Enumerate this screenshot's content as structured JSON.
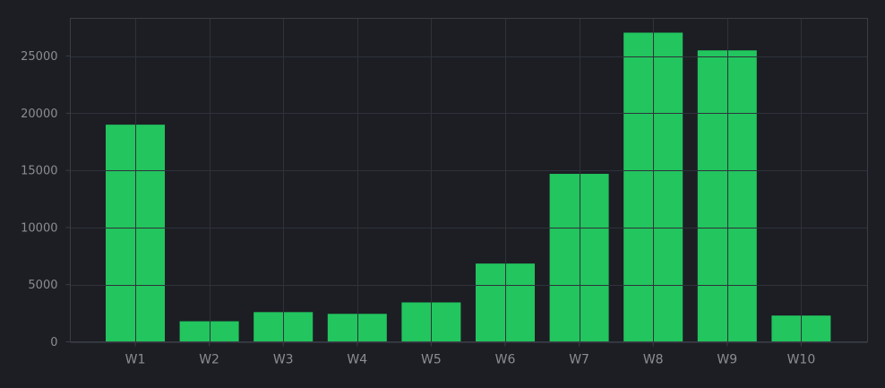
{
  "chart_data": {
    "type": "bar",
    "categories": [
      "W1",
      "W2",
      "W3",
      "W4",
      "W5",
      "W6",
      "W7",
      "W8",
      "W9",
      "W10"
    ],
    "values": [
      19000,
      1800,
      2600,
      2450,
      3450,
      6850,
      14700,
      27050,
      25500,
      2300
    ],
    "ylim": [
      0,
      28300
    ],
    "yticks": [
      0,
      5000,
      10000,
      15000,
      20000,
      25000
    ],
    "title": "",
    "xlabel": "",
    "ylabel": "",
    "grid": true,
    "legend": "none"
  },
  "colors": {
    "background": "#1c1e24",
    "plot_background": "#1c1e24",
    "bar": "#22c55e",
    "grid": "#2f323b",
    "axis": "#3a3d45",
    "tick_text": "#8a8d93"
  }
}
